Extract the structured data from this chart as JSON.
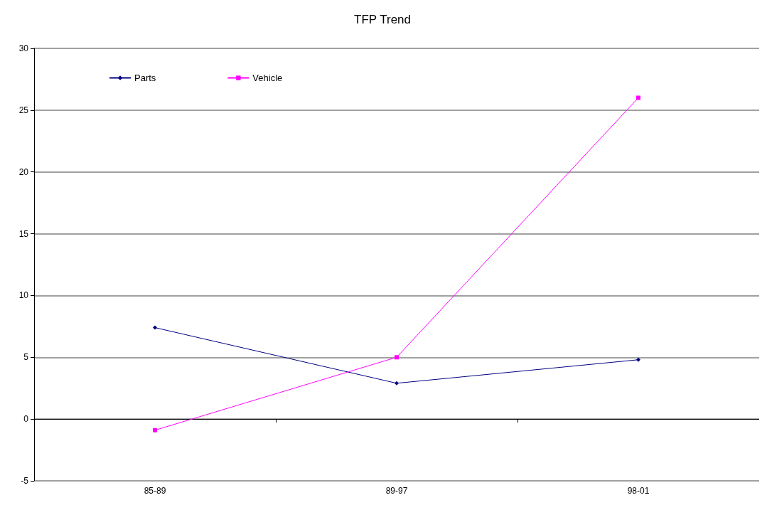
{
  "chart_data": {
    "type": "line",
    "title": "TFP Trend",
    "categories": [
      "85-89",
      "89-97",
      "98-01"
    ],
    "series": [
      {
        "name": "Parts",
        "color": "#000080",
        "values": [
          7.4,
          2.9,
          4.8
        ],
        "marker": "diamond"
      },
      {
        "name": "Vehicle",
        "color": "#ff00ff",
        "values": [
          -0.9,
          5.0,
          26.0
        ],
        "marker": "square"
      }
    ],
    "ylim": [
      -5,
      30
    ],
    "yticks": [
      -5,
      0,
      5,
      10,
      15,
      20,
      25,
      30
    ],
    "grid": "y",
    "legend": "top left",
    "line_style": "solid"
  }
}
